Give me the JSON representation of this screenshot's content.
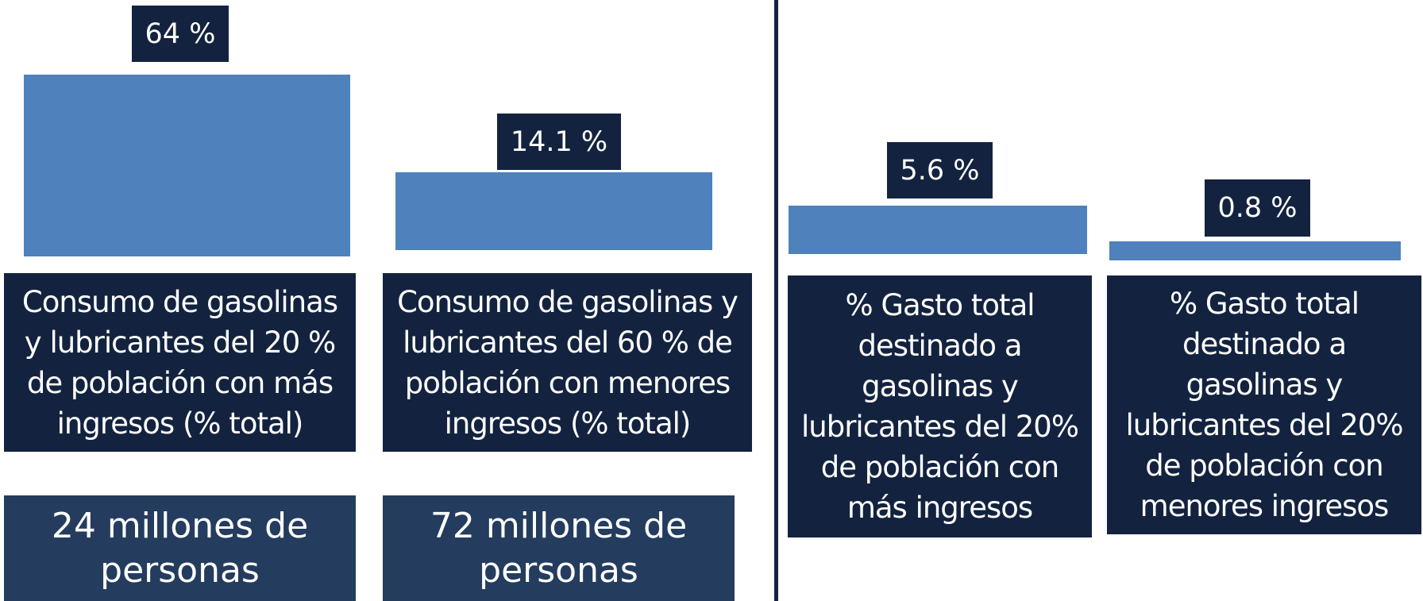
{
  "panels": [
    {
      "value_label": "64 %",
      "description": [
        "Consumo de gasolinas",
        "y lubricantes del 20 %",
        "de población con más",
        "ingresos (% total)"
      ],
      "population": [
        "24 millones de",
        "personas"
      ]
    },
    {
      "value_label": "14.1 %",
      "description": [
        "Consumo de gasolinas y",
        "lubricantes del 60 % de",
        "población con menores",
        "ingresos (% total)"
      ],
      "population": [
        "72 millones de",
        "personas"
      ]
    },
    {
      "value_label": "5.6 %",
      "description": [
        "% Gasto total",
        "destinado a",
        "gasolinas y",
        "lubricantes del 20%",
        "de población con",
        "más ingresos"
      ]
    },
    {
      "value_label": "0.8 %",
      "description": [
        "% Gasto total",
        "destinado a",
        "gasolinas y",
        "lubricantes del 20%",
        "de población con",
        "menores ingresos"
      ]
    }
  ]
}
